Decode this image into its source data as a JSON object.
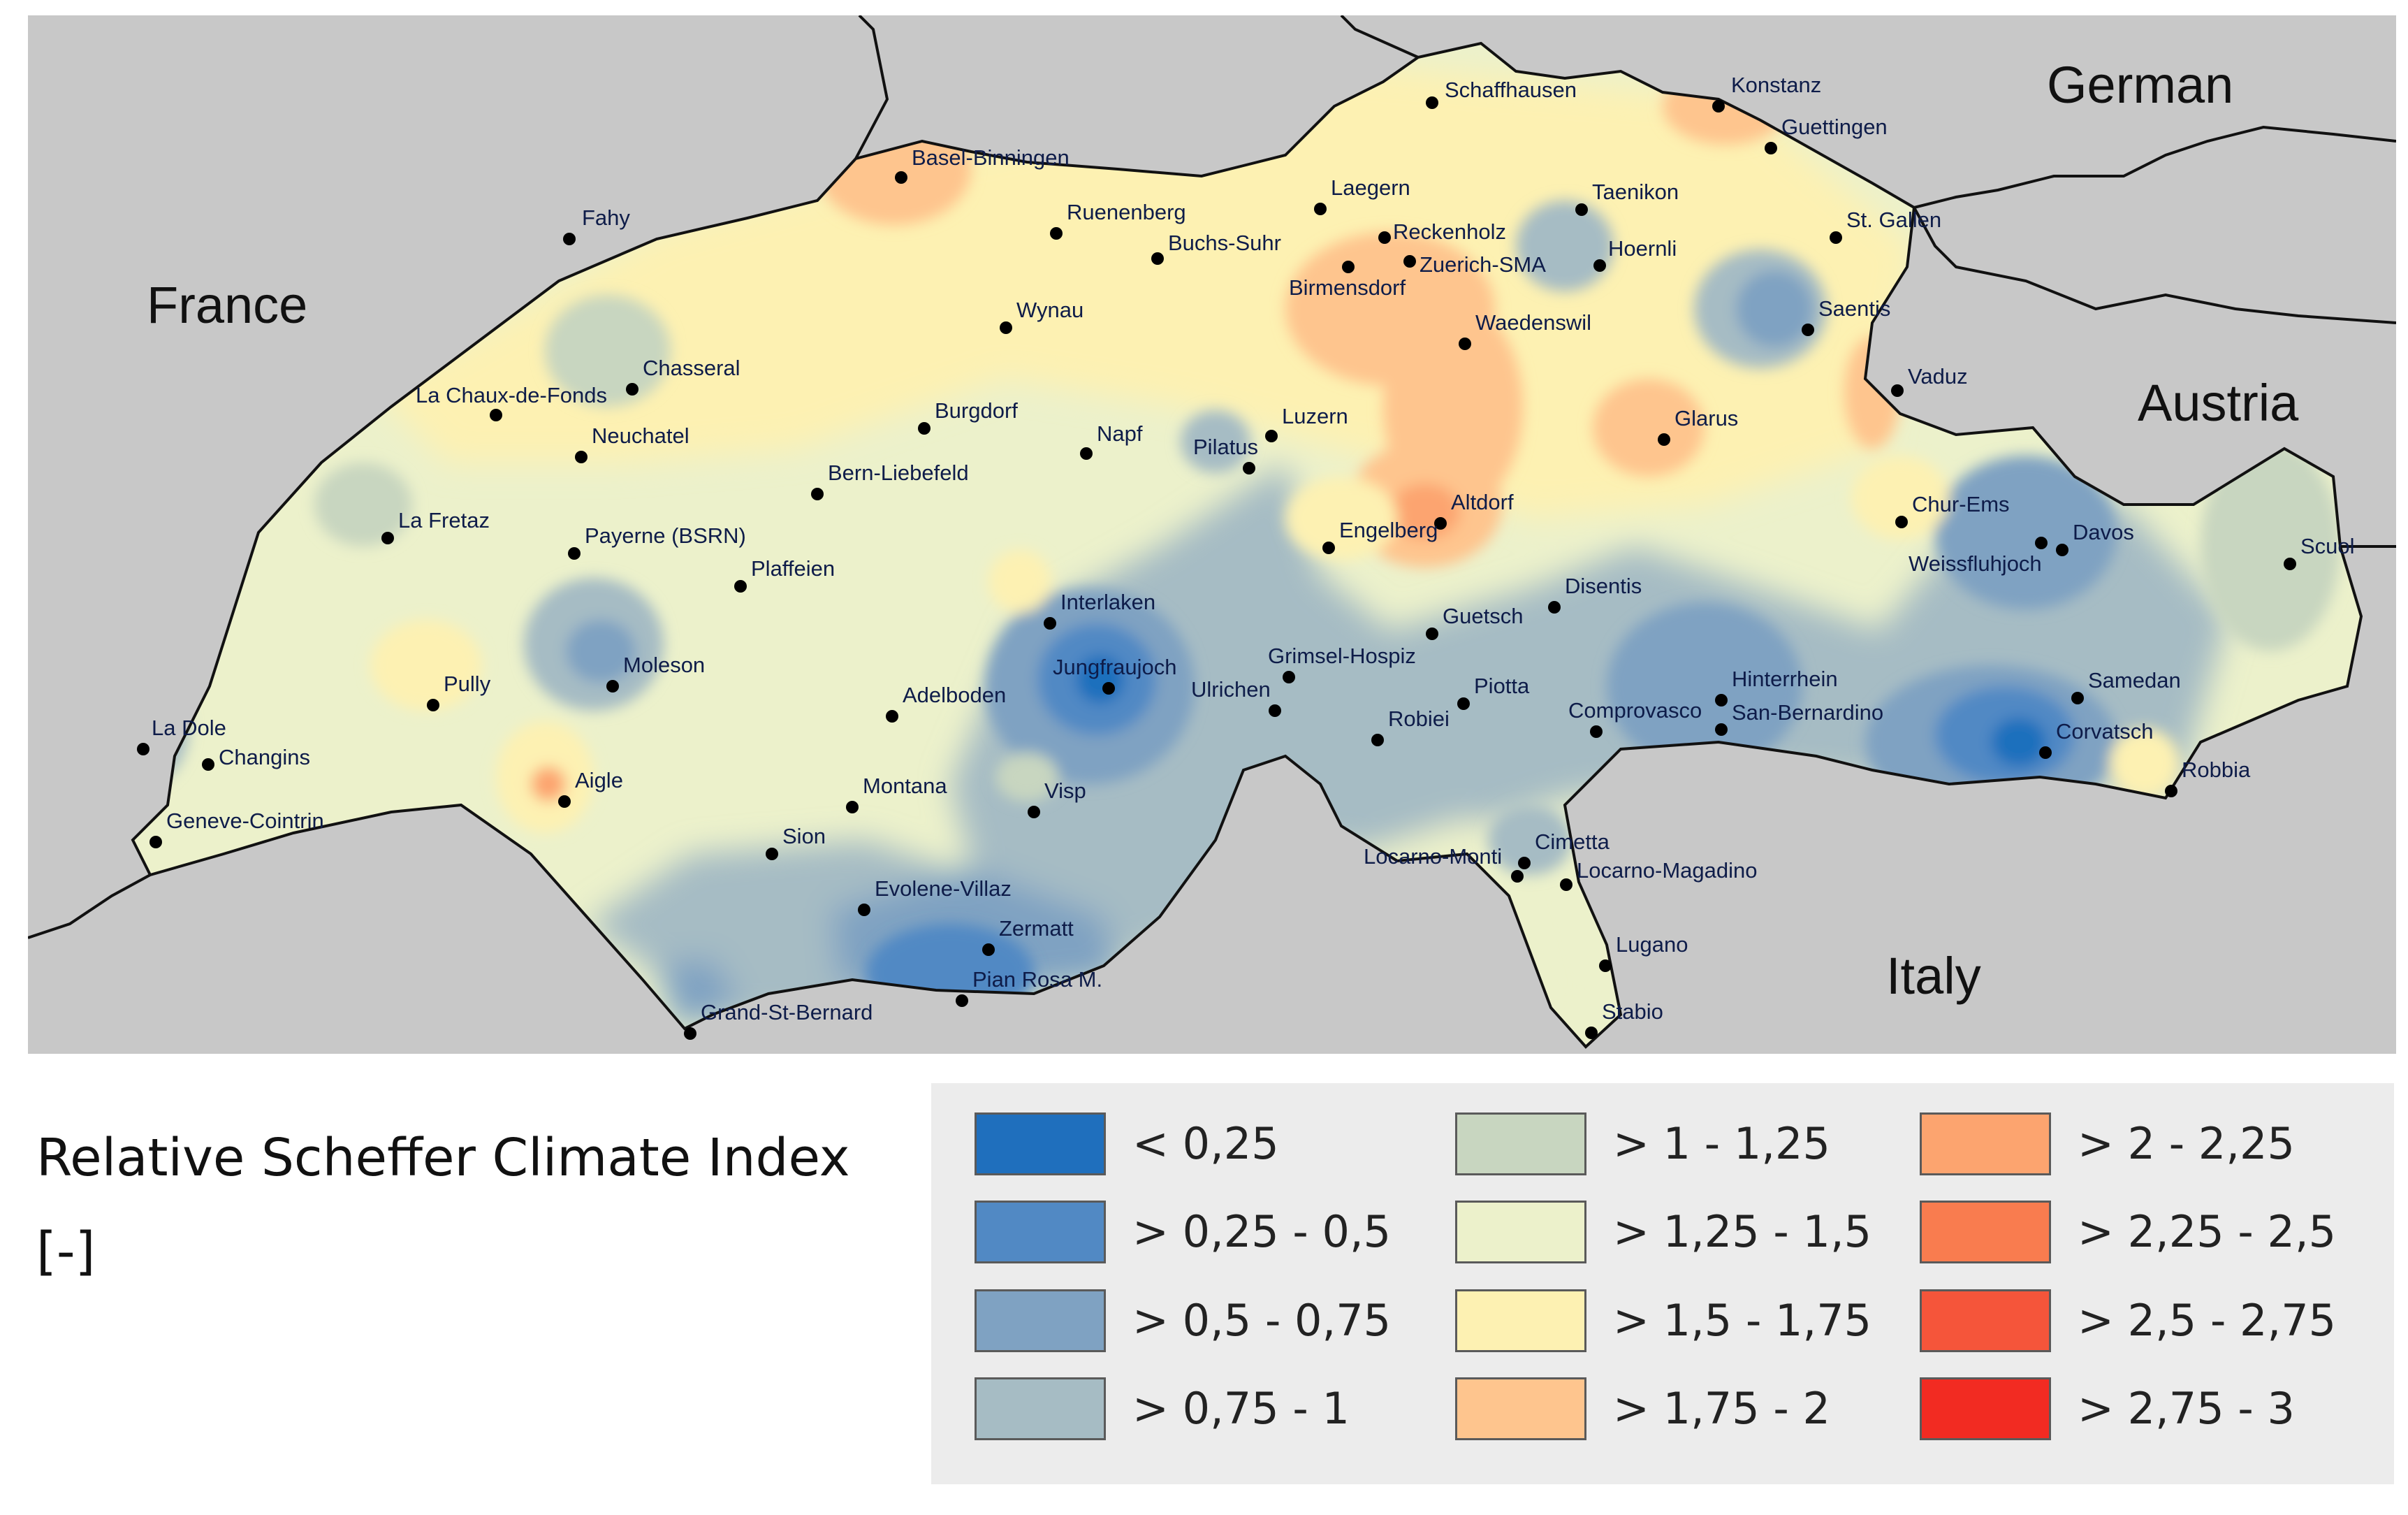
{
  "map": {
    "countries": [
      {
        "name": "German"
      },
      {
        "name": "France"
      },
      {
        "name": "Austria"
      },
      {
        "name": "Italy"
      }
    ],
    "stations": [
      "Schaffhausen",
      "Konstanz",
      "Guettingen",
      "Basel-Binningen",
      "Laegern",
      "Fahy",
      "Ruenenberg",
      "Taenikon",
      "St. Gallen",
      "Reckenholz",
      "Buchs-Suhr",
      "Hoernli",
      "Zuerich-SMA",
      "Birmensdorf",
      "Wynau",
      "Saentis",
      "Waedenswil",
      "Chasseral",
      "La Chaux-de-Fonds",
      "Vaduz",
      "Burgdorf",
      "Luzern",
      "Glarus",
      "Neuchatel",
      "Napf",
      "Pilatus",
      "Bern-Liebefeld",
      "Chur-Ems",
      "La Fretaz",
      "Altdorf",
      "Engelberg",
      "Davos",
      "Scuol",
      "Payerne (BSRN)",
      "Weissfluhjoch",
      "Plaffeien",
      "Disentis",
      "Interlaken",
      "Guetsch",
      "Grimsel-Hospiz",
      "Moleson",
      "Jungfraujoch",
      "Hinterrhein",
      "Samedan",
      "Piotta",
      "Ulrichen",
      "Pully",
      "Adelboden",
      "Comprovasco",
      "San-Bernardino",
      "La Dole",
      "Robiei",
      "Corvatsch",
      "Changins",
      "Robbia",
      "Aigle",
      "Montana",
      "Visp",
      "Geneve-Cointrin",
      "Sion",
      "Cimetta",
      "Locarno-Monti",
      "Locarno-Magadino",
      "Evolene-Villaz",
      "Zermatt",
      "Lugano",
      "Pian Rosa M.",
      "Grand-St-Bernard",
      "Stabio"
    ]
  },
  "legend": {
    "title_line1": "Relative Scheffer Climate Index",
    "title_line2": "[-]",
    "items": [
      {
        "label": "< 0,25",
        "color": "#1f6fbd"
      },
      {
        "label": "> 0,25 - 0,5",
        "color": "#5189c4"
      },
      {
        "label": "> 0,5 - 0,75",
        "color": "#7fa2c2"
      },
      {
        "label": "> 0,75 - 1",
        "color": "#a6bcc4"
      },
      {
        "label": "> 1 - 1,25",
        "color": "#c8d6c0"
      },
      {
        "label": "> 1,25 - 1,5",
        "color": "#ecf1cb"
      },
      {
        "label": "> 1,5 - 1,75",
        "color": "#fdf1b2"
      },
      {
        "label": "> 1,75 - 2",
        "color": "#fec58e"
      },
      {
        "label": "> 2 - 2,25",
        "color": "#fca46f"
      },
      {
        "label": "> 2,25 - 2,5",
        "color": "#f97c4f"
      },
      {
        "label": "> 2,5 - 2,75",
        "color": "#f5553a"
      },
      {
        "label": "> 2,75 - 3",
        "color": "#f22b22"
      }
    ]
  }
}
